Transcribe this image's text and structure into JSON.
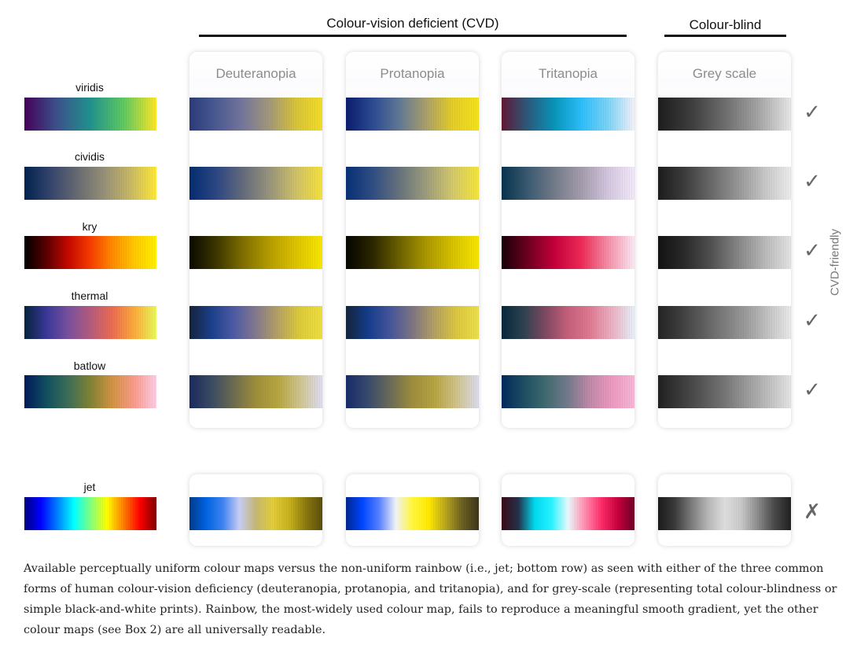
{
  "header": {
    "cvd_title": "Colour-vision deficient (CVD)",
    "blind_title": "Colour-blind"
  },
  "columns": [
    {
      "title": "Deuteranopia"
    },
    {
      "title": "Protanopia"
    },
    {
      "title": "Tritanopia"
    },
    {
      "title": "Grey scale"
    }
  ],
  "rows": [
    {
      "label": "viridis",
      "mark": "✓",
      "gradients": [
        "linear-gradient(90deg,#44015a,#3b528b,#21908d,#5ec962,#fde725)",
        "linear-gradient(90deg,#2a3b79,#4a5990,#74759a,#a2977a,#d7c33a,#f3dd27)",
        "linear-gradient(90deg,#0b1b6c,#2b4a90,#5f7694,#a89e6c,#e3cd28,#f5e11c)",
        "linear-gradient(90deg,#601734,#2a5a7c,#0794b8,#2cbdfa,#7cd3f6,#f3f1fa)",
        "linear-gradient(90deg,#1d1d1d,#3d3d3d,#6c6c6c,#a3a3a3,#e7e7e7)"
      ]
    },
    {
      "label": "cividis",
      "mark": "✓",
      "gradients": [
        "linear-gradient(90deg,#00224e,#35456c,#666970,#958f78,#c8b866,#fee838)",
        "linear-gradient(90deg,#042c6e,#2b4682,#62697a,#97937c,#cfc169,#f5e13b)",
        "linear-gradient(90deg,#072f74,#2f4d82,#65717b,#9b9b7c,#d2c86b,#f5e43a)",
        "linear-gradient(90deg,#06324d,#3a5a70,#737a88,#a39cac,#d3c6df,#f2e9f9)",
        "linear-gradient(90deg,#1c1c1c,#3c3c3c,#686868,#959595,#c6c6c6,#ececec)"
      ]
    },
    {
      "label": "kry",
      "mark": "✓",
      "gradients": [
        "linear-gradient(90deg,#000000,#5a0000,#c40800,#f53c00,#ff8a00,#ffc800,#fff000)",
        "linear-gradient(90deg,#0a0a00,#3b3500,#7d6d00,#b59c00,#ddc300,#f7e700)",
        "linear-gradient(90deg,#050502,#2a2600,#6a5f00,#a99600,#d6c100,#f7e600)",
        "linear-gradient(90deg,#170007,#6e0020,#c4003a,#ec2a57,#f58ea7,#fbe9f6)",
        "linear-gradient(90deg,#121212,#2a2a2a,#505050,#858585,#b8b8b8,#e3e3e3)"
      ]
    },
    {
      "label": "thermal",
      "mark": "✓",
      "gradients": [
        "linear-gradient(90deg,#04233d,#3a3798,#77509c,#b35a7d,#ec6c52,#fcab3c,#e7fa5a)",
        "linear-gradient(90deg,#14243c,#1c3f8a,#4c5aa2,#83788e,#b5a163,#ddcb3a,#eddf3e)",
        "linear-gradient(90deg,#13243a,#153c8a,#45559a,#7c7482,#b4a064,#dcc73f,#ece04c)",
        "linear-gradient(90deg,#06273a,#2e4250,#804860,#c45f7a,#df7a92,#ebb2c4,#e6f0f8)",
        "linear-gradient(90deg,#242424,#3d3d3d,#5c5c5c,#7c7c7c,#9c9c9c,#c4c4c4,#e9e9e9)"
      ]
    },
    {
      "label": "batlow",
      "mark": "✓",
      "gradients": [
        "linear-gradient(90deg,#011959,#104f5f,#3c6d56,#808133,#d29343,#fb9b8c,#fccde6)",
        "linear-gradient(90deg,#1a2a5e,#3a4a62,#6c6a50,#9d8d3b,#b6a640,#cfc490,#dedcf2)",
        "linear-gradient(90deg,#172a68,#384a6c,#6a6a57,#9c8c3c,#b7a443,#cfc38a,#dcdbef)",
        "linear-gradient(90deg,#02285a,#1d4d63,#3f6a6e,#74798b,#c189a8,#ee99c0,#f6b7d6)",
        "linear-gradient(90deg,#202020,#3a3a3a,#565656,#747474,#9a9a9a,#bfbfbf,#e4e4e4)"
      ]
    }
  ],
  "jet_row": {
    "label": "jet",
    "mark": "✗",
    "gradients": [
      "linear-gradient(90deg,#00007f,#0000ff,#007fff,#00ffff,#7fff7f,#ffff00,#ff7f00,#ff0000,#7f0000)",
      "linear-gradient(90deg,#003a8c,#0062e0,#3d82f0,#c7ccf4,#c4b672,#e2cd3c,#c9b21d,#8c7a10,#5a4e0c)",
      "linear-gradient(90deg,#00258f,#0046ff,#5780ff,#f0f0f4,#fff63c,#ffe900,#b8a520,#6c6021,#3c351c)",
      "linear-gradient(90deg,#3a0a14,#24304a,#00d8ee,#26f2ff,#e8f8fa,#ff8fb0,#ff2d6a,#c8003e,#6e0026)",
      "linear-gradient(90deg,#1a1a1a,#3a3a3a,#7a7a7a,#b5b5b5,#dcdcdc,#c9c9c9,#8c8c8c,#4a4a4a,#202020)"
    ]
  },
  "side_label": "CVD-friendly",
  "caption": "Available perceptually uniform colour maps versus the non-uniform rainbow (i.e., jet; bottom row) as seen with either of the three common forms of human colour-vision deficiency (deuteranopia, protanopia, and tritanopia), and for grey-scale (representing total colour-blindness or simple black-and-white prints). Rainbow, the most-widely used colour map, fails to reproduce a meaningful smooth gradient, yet the other colour maps (see Box 2) are all universally readable."
}
